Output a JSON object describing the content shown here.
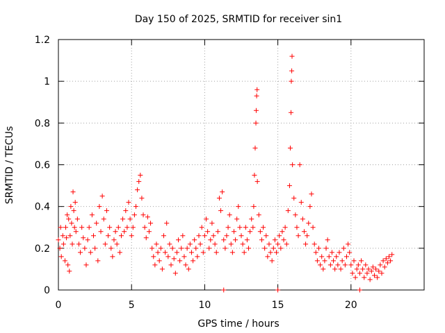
{
  "chart_data": {
    "type": "scatter",
    "title": "Day 150 of 2025, SRMTID for receiver sin1",
    "xlabel": "GPS time / hours",
    "ylabel": "SRMTID / TECUs",
    "xlim": [
      0,
      25
    ],
    "ylim": [
      0,
      1.2
    ],
    "xticks": [
      0,
      5,
      10,
      15,
      20
    ],
    "xtick_labels": [
      "0",
      "5",
      "10",
      "15",
      "20"
    ],
    "yticks": [
      0,
      0.2,
      0.4,
      0.6,
      0.8,
      1.0,
      1.2
    ],
    "ytick_labels": [
      "0",
      "0.2",
      "0.4",
      "0.6",
      "0.8",
      "1",
      "1.2"
    ],
    "grid": true,
    "marker": "+",
    "color": "#ff0000",
    "series": [
      {
        "name": "SRMTID",
        "points": [
          [
            0.0,
            0.24
          ],
          [
            0.1,
            0.2
          ],
          [
            0.15,
            0.3
          ],
          [
            0.2,
            0.16
          ],
          [
            0.3,
            0.26
          ],
          [
            0.35,
            0.22
          ],
          [
            0.45,
            0.14
          ],
          [
            0.5,
            0.3
          ],
          [
            0.55,
            0.25
          ],
          [
            0.6,
            0.36
          ],
          [
            0.65,
            0.12
          ],
          [
            0.7,
            0.34
          ],
          [
            0.75,
            0.09
          ],
          [
            0.8,
            0.26
          ],
          [
            0.85,
            0.4
          ],
          [
            0.9,
            0.32
          ],
          [
            0.95,
            0.22
          ],
          [
            1.0,
            0.47
          ],
          [
            1.05,
            0.38
          ],
          [
            1.1,
            0.3
          ],
          [
            1.15,
            0.42
          ],
          [
            1.2,
            0.28
          ],
          [
            1.3,
            0.34
          ],
          [
            1.4,
            0.22
          ],
          [
            1.5,
            0.18
          ],
          [
            1.6,
            0.3
          ],
          [
            1.7,
            0.25
          ],
          [
            1.8,
            0.2
          ],
          [
            1.9,
            0.12
          ],
          [
            2.0,
            0.24
          ],
          [
            2.1,
            0.3
          ],
          [
            2.2,
            0.18
          ],
          [
            2.3,
            0.36
          ],
          [
            2.4,
            0.26
          ],
          [
            2.5,
            0.2
          ],
          [
            2.6,
            0.32
          ],
          [
            2.7,
            0.14
          ],
          [
            2.8,
            0.4
          ],
          [
            2.9,
            0.28
          ],
          [
            3.0,
            0.45
          ],
          [
            3.1,
            0.34
          ],
          [
            3.2,
            0.22
          ],
          [
            3.3,
            0.38
          ],
          [
            3.4,
            0.26
          ],
          [
            3.5,
            0.3
          ],
          [
            3.6,
            0.2
          ],
          [
            3.7,
            0.16
          ],
          [
            3.8,
            0.24
          ],
          [
            3.9,
            0.28
          ],
          [
            4.0,
            0.22
          ],
          [
            4.1,
            0.3
          ],
          [
            4.2,
            0.18
          ],
          [
            4.3,
            0.26
          ],
          [
            4.4,
            0.34
          ],
          [
            4.5,
            0.28
          ],
          [
            4.6,
            0.38
          ],
          [
            4.7,
            0.3
          ],
          [
            4.8,
            0.42
          ],
          [
            4.9,
            0.34
          ],
          [
            5.0,
            0.26
          ],
          [
            5.1,
            0.3
          ],
          [
            5.2,
            0.36
          ],
          [
            5.3,
            0.4
          ],
          [
            5.4,
            0.48
          ],
          [
            5.5,
            0.52
          ],
          [
            5.6,
            0.55
          ],
          [
            5.7,
            0.44
          ],
          [
            5.8,
            0.36
          ],
          [
            5.9,
            0.3
          ],
          [
            6.0,
            0.25
          ],
          [
            6.1,
            0.35
          ],
          [
            6.2,
            0.28
          ],
          [
            6.3,
            0.32
          ],
          [
            6.4,
            0.2
          ],
          [
            6.5,
            0.16
          ],
          [
            6.6,
            0.12
          ],
          [
            6.7,
            0.22
          ],
          [
            6.8,
            0.18
          ],
          [
            6.9,
            0.14
          ],
          [
            7.0,
            0.2
          ],
          [
            7.1,
            0.1
          ],
          [
            7.2,
            0.26
          ],
          [
            7.3,
            0.18
          ],
          [
            7.4,
            0.32
          ],
          [
            7.5,
            0.16
          ],
          [
            7.6,
            0.22
          ],
          [
            7.7,
            0.12
          ],
          [
            7.8,
            0.2
          ],
          [
            7.9,
            0.15
          ],
          [
            8.0,
            0.08
          ],
          [
            8.1,
            0.18
          ],
          [
            8.2,
            0.24
          ],
          [
            8.3,
            0.14
          ],
          [
            8.4,
            0.2
          ],
          [
            8.5,
            0.26
          ],
          [
            8.6,
            0.16
          ],
          [
            8.7,
            0.12
          ],
          [
            8.8,
            0.2
          ],
          [
            8.9,
            0.1
          ],
          [
            9.0,
            0.22
          ],
          [
            9.1,
            0.18
          ],
          [
            9.2,
            0.14
          ],
          [
            9.3,
            0.24
          ],
          [
            9.4,
            0.2
          ],
          [
            9.5,
            0.16
          ],
          [
            9.6,
            0.26
          ],
          [
            9.7,
            0.22
          ],
          [
            9.8,
            0.3
          ],
          [
            9.9,
            0.18
          ],
          [
            10.0,
            0.26
          ],
          [
            10.1,
            0.34
          ],
          [
            10.2,
            0.28
          ],
          [
            10.3,
            0.2
          ],
          [
            10.4,
            0.24
          ],
          [
            10.5,
            0.32
          ],
          [
            10.6,
            0.26
          ],
          [
            10.7,
            0.22
          ],
          [
            10.8,
            0.18
          ],
          [
            10.9,
            0.28
          ],
          [
            11.0,
            0.44
          ],
          [
            11.1,
            0.38
          ],
          [
            11.2,
            0.47
          ],
          [
            11.3,
            0.24
          ],
          [
            11.4,
            0.2
          ],
          [
            11.5,
            0.26
          ],
          [
            11.6,
            0.3
          ],
          [
            11.7,
            0.36
          ],
          [
            11.8,
            0.22
          ],
          [
            11.9,
            0.18
          ],
          [
            12.0,
            0.28
          ],
          [
            12.1,
            0.24
          ],
          [
            12.2,
            0.34
          ],
          [
            12.3,
            0.4
          ],
          [
            12.4,
            0.3
          ],
          [
            12.5,
            0.26
          ],
          [
            12.6,
            0.22
          ],
          [
            12.7,
            0.18
          ],
          [
            12.8,
            0.3
          ],
          [
            12.9,
            0.24
          ],
          [
            13.0,
            0.2
          ],
          [
            13.1,
            0.28
          ],
          [
            13.2,
            0.34
          ],
          [
            13.3,
            0.3
          ],
          [
            13.35,
            0.4
          ],
          [
            13.4,
            0.55
          ],
          [
            13.45,
            0.68
          ],
          [
            13.5,
            0.8
          ],
          [
            13.52,
            0.86
          ],
          [
            13.55,
            0.93
          ],
          [
            13.58,
            0.96
          ],
          [
            13.6,
            0.52
          ],
          [
            13.7,
            0.36
          ],
          [
            13.8,
            0.28
          ],
          [
            13.9,
            0.24
          ],
          [
            14.0,
            0.3
          ],
          [
            14.1,
            0.2
          ],
          [
            14.2,
            0.26
          ],
          [
            14.3,
            0.16
          ],
          [
            14.4,
            0.22
          ],
          [
            14.5,
            0.18
          ],
          [
            14.6,
            0.14
          ],
          [
            14.7,
            0.2
          ],
          [
            14.8,
            0.24
          ],
          [
            14.9,
            0.18
          ],
          [
            15.0,
            0.22
          ],
          [
            15.1,
            0.26
          ],
          [
            15.2,
            0.2
          ],
          [
            15.3,
            0.28
          ],
          [
            15.4,
            0.24
          ],
          [
            15.5,
            0.3
          ],
          [
            15.6,
            0.22
          ],
          [
            15.7,
            0.38
          ],
          [
            15.8,
            0.5
          ],
          [
            15.85,
            0.68
          ],
          [
            15.9,
            0.85
          ],
          [
            15.92,
            1.0
          ],
          [
            15.95,
            1.05
          ],
          [
            15.97,
            1.12
          ],
          [
            16.0,
            0.6
          ],
          [
            16.1,
            0.44
          ],
          [
            16.2,
            0.36
          ],
          [
            16.3,
            0.3
          ],
          [
            16.4,
            0.26
          ],
          [
            16.5,
            0.6
          ],
          [
            16.6,
            0.42
          ],
          [
            16.7,
            0.34
          ],
          [
            16.8,
            0.28
          ],
          [
            16.9,
            0.22
          ],
          [
            17.0,
            0.26
          ],
          [
            17.1,
            0.32
          ],
          [
            17.2,
            0.4
          ],
          [
            17.3,
            0.46
          ],
          [
            17.4,
            0.3
          ],
          [
            17.5,
            0.22
          ],
          [
            17.6,
            0.18
          ],
          [
            17.7,
            0.14
          ],
          [
            17.8,
            0.2
          ],
          [
            17.9,
            0.12
          ],
          [
            18.0,
            0.16
          ],
          [
            18.1,
            0.1
          ],
          [
            18.2,
            0.14
          ],
          [
            18.3,
            0.2
          ],
          [
            18.4,
            0.24
          ],
          [
            18.5,
            0.16
          ],
          [
            18.6,
            0.12
          ],
          [
            18.7,
            0.18
          ],
          [
            18.8,
            0.14
          ],
          [
            18.9,
            0.1
          ],
          [
            19.0,
            0.16
          ],
          [
            19.1,
            0.12
          ],
          [
            19.2,
            0.18
          ],
          [
            19.3,
            0.1
          ],
          [
            19.4,
            0.14
          ],
          [
            19.5,
            0.2
          ],
          [
            19.6,
            0.12
          ],
          [
            19.7,
            0.16
          ],
          [
            19.8,
            0.22
          ],
          [
            19.9,
            0.18
          ],
          [
            20.0,
            0.12
          ],
          [
            20.1,
            0.08
          ],
          [
            20.2,
            0.14
          ],
          [
            20.3,
            0.06
          ],
          [
            20.4,
            0.1
          ],
          [
            20.5,
            0.12
          ],
          [
            20.6,
            0.08
          ],
          [
            20.7,
            0.14
          ],
          [
            20.8,
            0.1
          ],
          [
            20.9,
            0.06
          ],
          [
            21.0,
            0.12
          ],
          [
            21.1,
            0.08
          ],
          [
            21.2,
            0.1
          ],
          [
            21.3,
            0.05
          ],
          [
            21.4,
            0.09
          ],
          [
            21.5,
            0.11
          ],
          [
            21.6,
            0.07
          ],
          [
            21.7,
            0.1
          ],
          [
            21.8,
            0.06
          ],
          [
            21.9,
            0.09
          ],
          [
            22.0,
            0.12
          ],
          [
            22.1,
            0.08
          ],
          [
            22.2,
            0.14
          ],
          [
            22.3,
            0.11
          ],
          [
            22.4,
            0.15
          ],
          [
            22.5,
            0.13
          ],
          [
            22.6,
            0.16
          ],
          [
            22.7,
            0.14
          ],
          [
            22.8,
            0.17
          ]
        ]
      }
    ],
    "extra_points": [
      [
        11.3,
        0.0
      ],
      [
        15.0,
        0.0
      ],
      [
        20.6,
        0.0
      ]
    ]
  }
}
